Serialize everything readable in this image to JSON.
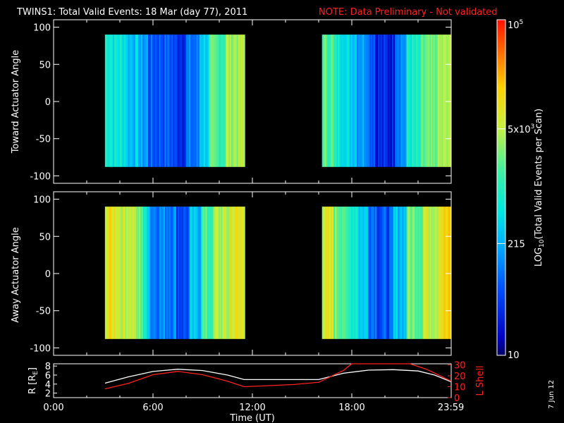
{
  "title": {
    "main": "TWINS1: Total Valid Events: 18 Mar (day  77), 2011",
    "note": "NOTE: Data Preliminary - Not validated"
  },
  "stamp": "7 Jun 12",
  "colors": {
    "note": "#ff2020",
    "ephem_r": "#ffffff",
    "ephem_l": "#ff2020",
    "background": "#000000"
  },
  "colorbar": {
    "label_prefix": "LOG",
    "label_sub": "10",
    "label_suffix": "(Total Valid  Events per Scan)",
    "ticks": [
      {
        "value": 10,
        "text": "10"
      },
      {
        "value": 215,
        "text": "215"
      },
      {
        "value": 5000,
        "text": "5x10",
        "sup": "3"
      },
      {
        "value": 100000,
        "text": "10",
        "sup": "5"
      }
    ],
    "range": [
      10,
      100000
    ],
    "scale": "log"
  },
  "time_axis": {
    "label": "Time (UT)",
    "ticks": [
      {
        "value": 0,
        "text": "0:00"
      },
      {
        "value": 6,
        "text": "6:00"
      },
      {
        "value": 12,
        "text": "12:00"
      },
      {
        "value": 18,
        "text": "18:00"
      },
      {
        "value": 23.983,
        "text": "23:59"
      }
    ],
    "range": [
      0,
      24
    ]
  },
  "panels": {
    "toward": {
      "ylabel": "Toward Actuator Angle",
      "yticks": [
        {
          "value": 100,
          "text": "100"
        },
        {
          "value": 50,
          "text": "50"
        },
        {
          "value": 0,
          "text": "0"
        },
        {
          "value": -50,
          "text": "-50"
        },
        {
          "value": -100,
          "text": "-100"
        }
      ]
    },
    "away": {
      "ylabel": "Away Actuator Angle",
      "yticks": [
        {
          "value": 100,
          "text": "100"
        },
        {
          "value": 50,
          "text": "50"
        },
        {
          "value": 0,
          "text": "0"
        },
        {
          "value": -50,
          "text": "-50"
        },
        {
          "value": -100,
          "text": "-100"
        }
      ]
    },
    "ephem": {
      "ylabel_left": "R [R",
      "ylabel_left_sub": "E",
      "ylabel_left_end": "]",
      "ylabel_right": "L Shell",
      "left_ticks": [
        {
          "value": 2,
          "text": "2"
        },
        {
          "value": 4,
          "text": "4"
        },
        {
          "value": 6,
          "text": "6"
        },
        {
          "value": 8,
          "text": "8"
        }
      ],
      "right_ticks": [
        {
          "value": 0,
          "text": "0"
        },
        {
          "value": 10,
          "text": "10"
        },
        {
          "value": 20,
          "text": "20"
        },
        {
          "value": 30,
          "text": "30"
        }
      ]
    }
  },
  "chart_data": [
    {
      "type": "heatmap",
      "name": "toward",
      "x_unit": "hours UT",
      "xlim": [
        0,
        24
      ],
      "ylim": [
        -110,
        110
      ],
      "angle_range": [
        -88,
        90
      ],
      "scan_intervals": [
        {
          "start": 3.1,
          "end": 11.55
        },
        {
          "start": 16.2,
          "end": 24.0
        }
      ],
      "bands": [
        {
          "t0": 3.1,
          "t1": 3.5,
          "v": 900
        },
        {
          "t0": 3.5,
          "t1": 4.4,
          "v": 600
        },
        {
          "t0": 4.4,
          "t1": 5.2,
          "v": 300
        },
        {
          "t0": 5.2,
          "t1": 5.7,
          "v": 180
        },
        {
          "t0": 5.7,
          "t1": 7.2,
          "v": 70
        },
        {
          "t0": 7.2,
          "t1": 8.0,
          "v": 45
        },
        {
          "t0": 8.0,
          "t1": 8.8,
          "v": 90
        },
        {
          "t0": 8.8,
          "t1": 9.4,
          "v": 400
        },
        {
          "t0": 9.4,
          "t1": 10.4,
          "v": 1500
        },
        {
          "t0": 10.4,
          "t1": 11.55,
          "v": 4000
        },
        {
          "t0": 16.2,
          "t1": 16.9,
          "v": 1800
        },
        {
          "t0": 16.9,
          "t1": 17.6,
          "v": 700
        },
        {
          "t0": 17.6,
          "t1": 18.3,
          "v": 400
        },
        {
          "t0": 18.3,
          "t1": 19.0,
          "v": 200
        },
        {
          "t0": 19.0,
          "t1": 19.4,
          "v": 90
        },
        {
          "t0": 19.4,
          "t1": 20.6,
          "v": 30
        },
        {
          "t0": 20.6,
          "t1": 21.3,
          "v": 150
        },
        {
          "t0": 21.3,
          "t1": 22.2,
          "v": 700
        },
        {
          "t0": 22.2,
          "t1": 23.1,
          "v": 1800
        },
        {
          "t0": 23.1,
          "t1": 24.0,
          "v": 3500
        }
      ]
    },
    {
      "type": "heatmap",
      "name": "away",
      "x_unit": "hours UT",
      "xlim": [
        0,
        24
      ],
      "ylim": [
        -110,
        110
      ],
      "angle_range": [
        -88,
        90
      ],
      "scan_intervals": [
        {
          "start": 3.1,
          "end": 11.55
        },
        {
          "start": 16.2,
          "end": 24.0
        }
      ],
      "bands": [
        {
          "t0": 3.1,
          "t1": 3.9,
          "v": 9000
        },
        {
          "t0": 3.9,
          "t1": 4.9,
          "v": 6000
        },
        {
          "t0": 4.9,
          "t1": 5.4,
          "v": 2500
        },
        {
          "t0": 5.4,
          "t1": 5.8,
          "v": 600
        },
        {
          "t0": 5.8,
          "t1": 7.4,
          "v": 130
        },
        {
          "t0": 7.4,
          "t1": 8.2,
          "v": 60
        },
        {
          "t0": 8.2,
          "t1": 8.9,
          "v": 250
        },
        {
          "t0": 8.9,
          "t1": 9.7,
          "v": 1500
        },
        {
          "t0": 9.7,
          "t1": 10.6,
          "v": 4000
        },
        {
          "t0": 10.6,
          "t1": 11.55,
          "v": 8000
        },
        {
          "t0": 16.2,
          "t1": 16.9,
          "v": 6000
        },
        {
          "t0": 16.9,
          "t1": 17.6,
          "v": 2500
        },
        {
          "t0": 17.6,
          "t1": 18.4,
          "v": 900
        },
        {
          "t0": 18.4,
          "t1": 19.0,
          "v": 350
        },
        {
          "t0": 19.0,
          "t1": 19.5,
          "v": 120
        },
        {
          "t0": 19.5,
          "t1": 20.5,
          "v": 60
        },
        {
          "t0": 20.5,
          "t1": 21.3,
          "v": 300
        },
        {
          "t0": 21.3,
          "t1": 22.3,
          "v": 2500
        },
        {
          "t0": 22.3,
          "t1": 23.2,
          "v": 6000
        },
        {
          "t0": 23.2,
          "t1": 24.0,
          "v": 12000
        }
      ]
    },
    {
      "type": "line",
      "name": "ephemeris",
      "x_unit": "hours UT",
      "xlim": [
        0,
        24
      ],
      "series": [
        {
          "axis": "left",
          "ylim": [
            1,
            8.5
          ],
          "x": [
            3.1,
            4.5,
            6.0,
            7.5,
            9.0,
            10.5,
            11.5,
            13.0,
            14.5,
            16.0,
            17.5,
            19.0,
            20.5,
            22.0,
            23.0,
            24.0
          ],
          "y": [
            4.2,
            5.6,
            6.8,
            7.3,
            7.0,
            6.0,
            5.0,
            5.0,
            5.0,
            5.0,
            6.4,
            7.1,
            7.2,
            6.9,
            6.0,
            4.5
          ]
        },
        {
          "axis": "right",
          "ylim": [
            0,
            31
          ],
          "x": [
            3.1,
            4.5,
            6.0,
            7.5,
            9.0,
            10.5,
            11.5,
            13.0,
            14.5,
            16.0,
            17.5,
            18.0,
            21.5,
            22.5,
            23.2,
            24.0
          ],
          "y": [
            8,
            13,
            21,
            24,
            21,
            15,
            10,
            11,
            12,
            14,
            25,
            31,
            31,
            26,
            21,
            15
          ]
        }
      ]
    }
  ]
}
